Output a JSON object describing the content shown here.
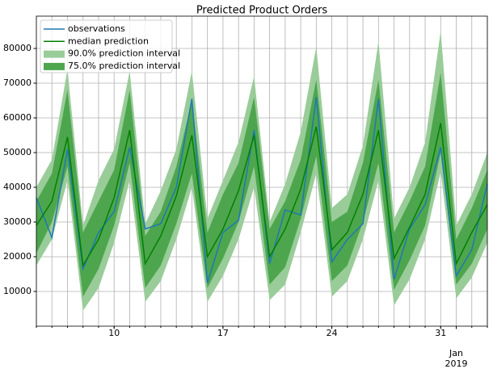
{
  "chart_data": {
    "type": "line",
    "title": "Predicted Product Orders",
    "x": [
      5,
      6,
      7,
      8,
      9,
      10,
      11,
      12,
      13,
      14,
      15,
      16,
      17,
      18,
      19,
      20,
      21,
      22,
      23,
      24,
      25,
      26,
      27,
      28,
      29,
      30,
      31,
      32,
      33,
      34
    ],
    "xlim": [
      5,
      34
    ],
    "xticks": [
      10,
      17,
      24,
      31,
      {
        "value": 32,
        "label": "Jan\n2019"
      }
    ],
    "ylim": [
      0,
      89300
    ],
    "yticks": [
      10000,
      20000,
      30000,
      40000,
      50000,
      60000,
      70000,
      80000
    ],
    "grid": true,
    "legend": "upper left",
    "series": [
      {
        "name": "90.0% prediction interval",
        "color": "#99cc99",
        "lower": [
          17500,
          25000,
          42000,
          4500,
          11000,
          24000,
          42000,
          7000,
          13000,
          25000,
          40000,
          7000,
          14500,
          25000,
          40000,
          7500,
          12000,
          27000,
          44000,
          8500,
          13000,
          25000,
          42000,
          6000,
          13500,
          25000,
          44500,
          8000,
          14000,
          24000
        ],
        "upper": [
          40000,
          48000,
          74000,
          29000,
          42000,
          51000,
          73500,
          29500,
          39000,
          51000,
          73500,
          31000,
          42000,
          53000,
          72000,
          30000,
          41000,
          56000,
          80500,
          34000,
          38000,
          52000,
          82000,
          31000,
          40000,
          53000,
          85000,
          29000,
          38000,
          50000
        ]
      },
      {
        "name": "75.0% prediction interval",
        "color": "#4da64d",
        "lower": [
          21000,
          30000,
          46000,
          8500,
          16500,
          29000,
          47000,
          11000,
          17500,
          29500,
          44000,
          11000,
          19500,
          30000,
          46000,
          12000,
          17000,
          31000,
          49000,
          13000,
          17500,
          30000,
          47000,
          10500,
          19000,
          29000,
          50000,
          12000,
          18000,
          28000
        ],
        "upper": [
          36000,
          44000,
          68000,
          27000,
          36000,
          45000,
          68000,
          26000,
          33000,
          46000,
          65000,
          27000,
          38000,
          47000,
          66000,
          28000,
          36000,
          48000,
          71000,
          30000,
          33000,
          47000,
          71000,
          27000,
          36000,
          46000,
          73000,
          25000,
          34000,
          45000
        ]
      },
      {
        "name": "observations",
        "color": "#1f77b4",
        "values": [
          37000,
          25500,
          51000,
          16500,
          27000,
          33000,
          51500,
          28000,
          29500,
          40000,
          65500,
          12500,
          27000,
          30500,
          56500,
          18000,
          33500,
          32000,
          66000,
          18500,
          25000,
          29500,
          65500,
          13500,
          28000,
          35000,
          51500,
          14500,
          22000,
          41000
        ]
      },
      {
        "name": "median prediction",
        "color": "#008000",
        "values": [
          29000,
          36000,
          54500,
          17500,
          25000,
          37000,
          56500,
          18000,
          26000,
          37500,
          55000,
          20000,
          28000,
          39000,
          55000,
          20000,
          28000,
          39500,
          57500,
          22000,
          27000,
          38000,
          56500,
          19500,
          28500,
          38000,
          58500,
          18000,
          27000,
          35000
        ]
      }
    ]
  }
}
